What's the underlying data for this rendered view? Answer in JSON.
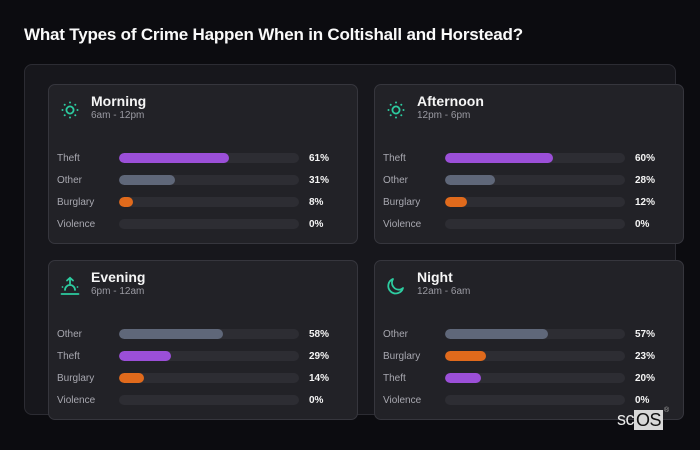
{
  "title": "What Types of Crime Happen When in Coltishall and Horstead?",
  "colors": {
    "theft": "#9b4fd8",
    "other": "#5f6779",
    "burglary": "#e06a1c",
    "violence": "#c0392b",
    "accent": "#2dcca0"
  },
  "cards": [
    {
      "name": "Morning",
      "range": "6am - 12pm",
      "icon": "sun-icon",
      "rows": [
        {
          "label": "Theft",
          "pct": "61%",
          "value": 61,
          "color": "#9b4fd8"
        },
        {
          "label": "Other",
          "pct": "31%",
          "value": 31,
          "color": "#5f6779"
        },
        {
          "label": "Burglary",
          "pct": "8%",
          "value": 8,
          "color": "#e06a1c"
        },
        {
          "label": "Violence",
          "pct": "0%",
          "value": 0,
          "color": "#c0392b"
        }
      ]
    },
    {
      "name": "Afternoon",
      "range": "12pm - 6pm",
      "icon": "sun-icon",
      "rows": [
        {
          "label": "Theft",
          "pct": "60%",
          "value": 60,
          "color": "#9b4fd8"
        },
        {
          "label": "Other",
          "pct": "28%",
          "value": 28,
          "color": "#5f6779"
        },
        {
          "label": "Burglary",
          "pct": "12%",
          "value": 12,
          "color": "#e06a1c"
        },
        {
          "label": "Violence",
          "pct": "0%",
          "value": 0,
          "color": "#c0392b"
        }
      ]
    },
    {
      "name": "Evening",
      "range": "6pm - 12am",
      "icon": "sunset-icon",
      "rows": [
        {
          "label": "Other",
          "pct": "58%",
          "value": 58,
          "color": "#5f6779"
        },
        {
          "label": "Theft",
          "pct": "29%",
          "value": 29,
          "color": "#9b4fd8"
        },
        {
          "label": "Burglary",
          "pct": "14%",
          "value": 14,
          "color": "#e06a1c"
        },
        {
          "label": "Violence",
          "pct": "0%",
          "value": 0,
          "color": "#c0392b"
        }
      ]
    },
    {
      "name": "Night",
      "range": "12am - 6am",
      "icon": "moon-icon",
      "rows": [
        {
          "label": "Other",
          "pct": "57%",
          "value": 57,
          "color": "#5f6779"
        },
        {
          "label": "Burglary",
          "pct": "23%",
          "value": 23,
          "color": "#e06a1c"
        },
        {
          "label": "Theft",
          "pct": "20%",
          "value": 20,
          "color": "#9b4fd8"
        },
        {
          "label": "Violence",
          "pct": "0%",
          "value": 0,
          "color": "#c0392b"
        }
      ]
    }
  ],
  "logo": {
    "sc": "sc",
    "os": "OS",
    "reg": "®"
  },
  "chart_data": [
    {
      "type": "bar",
      "orientation": "horizontal",
      "title": "Morning",
      "subtitle": "6am - 12pm",
      "categories": [
        "Theft",
        "Other",
        "Burglary",
        "Violence"
      ],
      "values": [
        61,
        31,
        8,
        0
      ],
      "unit": "%",
      "xlim": [
        0,
        100
      ]
    },
    {
      "type": "bar",
      "orientation": "horizontal",
      "title": "Afternoon",
      "subtitle": "12pm - 6pm",
      "categories": [
        "Theft",
        "Other",
        "Burglary",
        "Violence"
      ],
      "values": [
        60,
        28,
        12,
        0
      ],
      "unit": "%",
      "xlim": [
        0,
        100
      ]
    },
    {
      "type": "bar",
      "orientation": "horizontal",
      "title": "Evening",
      "subtitle": "6pm - 12am",
      "categories": [
        "Other",
        "Theft",
        "Burglary",
        "Violence"
      ],
      "values": [
        58,
        29,
        14,
        0
      ],
      "unit": "%",
      "xlim": [
        0,
        100
      ]
    },
    {
      "type": "bar",
      "orientation": "horizontal",
      "title": "Night",
      "subtitle": "12am - 6am",
      "categories": [
        "Other",
        "Burglary",
        "Theft",
        "Violence"
      ],
      "values": [
        57,
        23,
        20,
        0
      ],
      "unit": "%",
      "xlim": [
        0,
        100
      ]
    }
  ]
}
